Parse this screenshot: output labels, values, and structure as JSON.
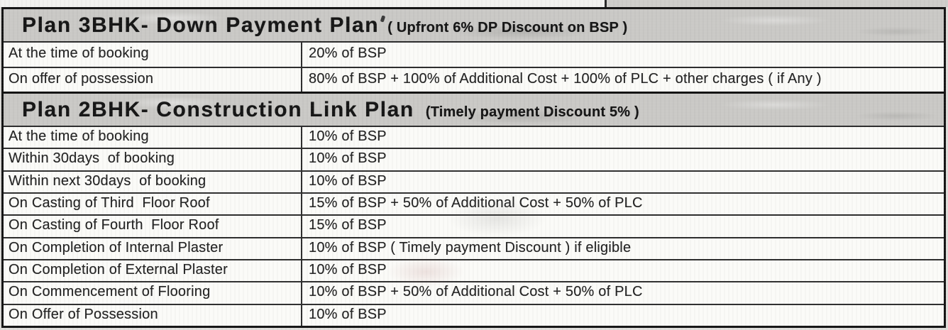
{
  "colors": {
    "page_bg": "#dfdedb",
    "paper": "#fbfbf8",
    "header_band": "#cac9c6",
    "border_dark": "#141414",
    "line": "#2e2e2e",
    "ink": "#242424",
    "ink_heavy": "#161616"
  },
  "tables": [
    {
      "header": {
        "title": "Plan 3BHK- Down Payment Plan",
        "subtitle": "( Upfront 6% DP Discount on BSP )"
      },
      "rows": [
        {
          "milestone": "At the time of booking",
          "payment": "20% of BSP"
        },
        {
          "milestone": "On offer of possession",
          "payment": "80% of BSP + 100% of Additional Cost + 100% of PLC + other charges ( if Any )"
        }
      ]
    },
    {
      "header": {
        "title": "Plan 2BHK- Construction Link Plan",
        "subtitle": "(Timely payment Discount 5% )"
      },
      "rows": [
        {
          "milestone": "At the time of booking",
          "payment": "10% of BSP"
        },
        {
          "milestone": "Within 30days  of booking",
          "payment": "10% of BSP"
        },
        {
          "milestone": "Within next 30days  of booking",
          "payment": "10% of BSP"
        },
        {
          "milestone": "On Casting of Third  Floor Roof",
          "payment": "15% of BSP + 50% of Additional Cost + 50% of PLC"
        },
        {
          "milestone": "On Casting of Fourth  Floor Roof",
          "payment": "15% of BSP"
        },
        {
          "milestone": "On Completion of Internal Plaster",
          "payment": "10% of BSP ( Timely payment Discount ) if eligible"
        },
        {
          "milestone": "On Completion of External Plaster",
          "payment": "10% of BSP"
        },
        {
          "milestone": "On Commencement of Flooring",
          "payment": "10% of BSP + 50% of Additional Cost + 50% of PLC"
        },
        {
          "milestone": "On Offer of Possession",
          "payment": "10% of BSP"
        }
      ]
    }
  ]
}
